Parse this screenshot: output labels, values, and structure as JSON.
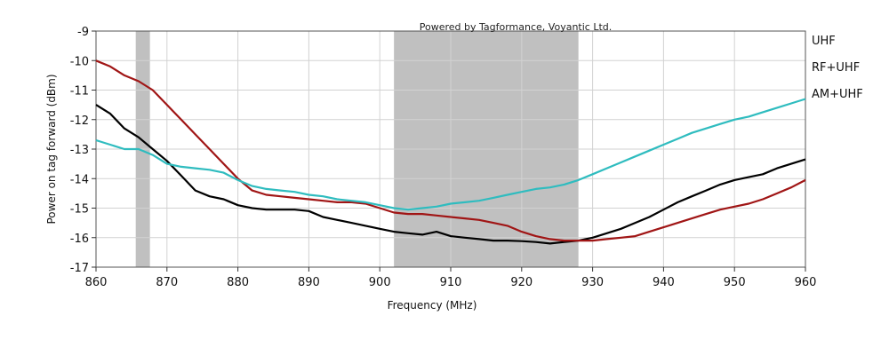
{
  "chart_data": {
    "type": "line",
    "title": "",
    "annotation": "Powered by Tagformance, Voyantic Ltd.",
    "xlabel": "Frequency (MHz)",
    "ylabel": "Power on tag forward (dBm)",
    "xlim": [
      860,
      960
    ],
    "ylim": [
      -17,
      -9
    ],
    "xticks": [
      860,
      870,
      880,
      890,
      900,
      910,
      920,
      930,
      940,
      950,
      960
    ],
    "yticks": [
      -9,
      -10,
      -11,
      -12,
      -13,
      -14,
      -15,
      -16,
      -17
    ],
    "grid": true,
    "legend_position": "right",
    "shaded_bands": [
      {
        "x0": 865.6,
        "x1": 867.6,
        "color": "#c0c0c0"
      },
      {
        "x0": 902,
        "x1": 928,
        "color": "#c0c0c0"
      }
    ],
    "series": [
      {
        "name": "UHF",
        "color": "#000000",
        "x": [
          860,
          862,
          864,
          866,
          868,
          870,
          872,
          874,
          876,
          878,
          880,
          882,
          884,
          886,
          888,
          890,
          892,
          894,
          896,
          898,
          900,
          902,
          904,
          906,
          908,
          910,
          912,
          914,
          916,
          918,
          920,
          922,
          924,
          926,
          928,
          930,
          932,
          934,
          936,
          938,
          940,
          942,
          944,
          946,
          948,
          950,
          952,
          954,
          956,
          958,
          960
        ],
        "values": [
          -11.5,
          -11.8,
          -12.3,
          -12.6,
          -13.0,
          -13.4,
          -13.9,
          -14.4,
          -14.6,
          -14.7,
          -14.9,
          -15.0,
          -15.05,
          -15.05,
          -15.05,
          -15.1,
          -15.3,
          -15.4,
          -15.5,
          -15.6,
          -15.7,
          -15.8,
          -15.85,
          -15.9,
          -15.8,
          -15.95,
          -16.0,
          -16.05,
          -16.1,
          -16.1,
          -16.12,
          -16.15,
          -16.2,
          -16.15,
          -16.1,
          -16.0,
          -15.85,
          -15.7,
          -15.5,
          -15.3,
          -15.05,
          -14.8,
          -14.6,
          -14.4,
          -14.2,
          -14.05,
          -13.95,
          -13.85,
          -13.65,
          -13.5,
          -13.35
        ]
      },
      {
        "name": "RF+UHF",
        "color": "#a01515",
        "x": [
          860,
          862,
          864,
          866,
          868,
          870,
          872,
          874,
          876,
          878,
          880,
          882,
          884,
          886,
          888,
          890,
          892,
          894,
          896,
          898,
          900,
          902,
          904,
          906,
          908,
          910,
          912,
          914,
          916,
          918,
          920,
          922,
          924,
          926,
          928,
          930,
          932,
          934,
          936,
          938,
          940,
          942,
          944,
          946,
          948,
          950,
          952,
          954,
          956,
          958,
          960
        ],
        "values": [
          -10.0,
          -10.2,
          -10.5,
          -10.7,
          -11.0,
          -11.5,
          -12.0,
          -12.5,
          -13.0,
          -13.5,
          -14.0,
          -14.4,
          -14.55,
          -14.6,
          -14.65,
          -14.7,
          -14.75,
          -14.8,
          -14.8,
          -14.85,
          -15.0,
          -15.15,
          -15.2,
          -15.2,
          -15.25,
          -15.3,
          -15.35,
          -15.4,
          -15.5,
          -15.6,
          -15.8,
          -15.95,
          -16.05,
          -16.1,
          -16.1,
          -16.1,
          -16.05,
          -16.0,
          -15.95,
          -15.8,
          -15.65,
          -15.5,
          -15.35,
          -15.2,
          -15.05,
          -14.95,
          -14.85,
          -14.7,
          -14.5,
          -14.3,
          -14.05
        ]
      },
      {
        "name": "AM+UHF",
        "color": "#2fbcbf",
        "x": [
          860,
          862,
          864,
          866,
          868,
          870,
          872,
          874,
          876,
          878,
          880,
          882,
          884,
          886,
          888,
          890,
          892,
          894,
          896,
          898,
          900,
          902,
          904,
          906,
          908,
          910,
          912,
          914,
          916,
          918,
          920,
          922,
          924,
          926,
          928,
          930,
          932,
          934,
          936,
          938,
          940,
          942,
          944,
          946,
          948,
          950,
          952,
          954,
          956,
          958,
          960
        ],
        "values": [
          -12.7,
          -12.85,
          -13.0,
          -13.0,
          -13.2,
          -13.5,
          -13.6,
          -13.65,
          -13.7,
          -13.8,
          -14.05,
          -14.25,
          -14.35,
          -14.4,
          -14.45,
          -14.55,
          -14.6,
          -14.7,
          -14.75,
          -14.8,
          -14.9,
          -15.0,
          -15.05,
          -15.0,
          -14.95,
          -14.85,
          -14.8,
          -14.75,
          -14.65,
          -14.55,
          -14.45,
          -14.35,
          -14.3,
          -14.2,
          -14.05,
          -13.85,
          -13.65,
          -13.45,
          -13.25,
          -13.05,
          -12.85,
          -12.65,
          -12.45,
          -12.3,
          -12.15,
          -12.0,
          -11.9,
          -11.75,
          -11.6,
          -11.45,
          -11.3
        ]
      }
    ]
  }
}
